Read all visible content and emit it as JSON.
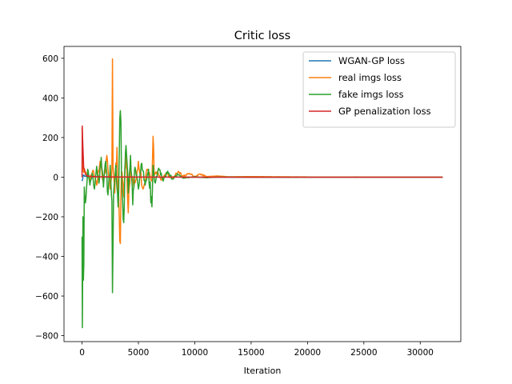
{
  "chart_data": {
    "type": "line",
    "title": "Critic loss",
    "xlabel": "Iteration",
    "ylabel": "",
    "xlim": [
      -1600,
      33600
    ],
    "ylim": [
      -830,
      660
    ],
    "x_ticks": [
      0,
      5000,
      10000,
      15000,
      20000,
      25000,
      30000
    ],
    "y_ticks": [
      -800,
      -600,
      -400,
      -200,
      0,
      200,
      400,
      600
    ],
    "grid": false,
    "legend_position": "top-right",
    "x_max": 32000,
    "series": [
      {
        "name": "WGAN-GP loss",
        "color": "#1f77b4",
        "points": [
          [
            0,
            -20
          ],
          [
            100,
            10
          ],
          [
            300,
            5
          ],
          [
            600,
            -3
          ],
          [
            1000,
            2
          ],
          [
            2000,
            0
          ],
          [
            5000,
            1
          ],
          [
            10000,
            0
          ],
          [
            20000,
            0
          ],
          [
            32000,
            0
          ]
        ]
      },
      {
        "name": "real imgs loss",
        "color": "#ff7f0e",
        "points": [
          [
            0,
            250
          ],
          [
            50,
            100
          ],
          [
            100,
            30
          ],
          [
            200,
            45
          ],
          [
            400,
            20
          ],
          [
            700,
            -15
          ],
          [
            1000,
            35
          ],
          [
            1300,
            -40
          ],
          [
            1600,
            80
          ],
          [
            1900,
            -30
          ],
          [
            2200,
            110
          ],
          [
            2500,
            -60
          ],
          [
            2650,
            40
          ],
          [
            2700,
            597
          ],
          [
            2750,
            50
          ],
          [
            2900,
            -80
          ],
          [
            3100,
            150
          ],
          [
            3300,
            -200
          ],
          [
            3400,
            -335
          ],
          [
            3500,
            30
          ],
          [
            3700,
            -100
          ],
          [
            3900,
            130
          ],
          [
            4100,
            -180
          ],
          [
            4300,
            60
          ],
          [
            4600,
            -50
          ],
          [
            5000,
            80
          ],
          [
            5400,
            -60
          ],
          [
            5800,
            40
          ],
          [
            6200,
            -20
          ],
          [
            6300,
            206
          ],
          [
            6400,
            10
          ],
          [
            6700,
            30
          ],
          [
            7000,
            -15
          ],
          [
            7500,
            20
          ],
          [
            8000,
            -10
          ],
          [
            8500,
            25
          ],
          [
            9000,
            5
          ],
          [
            9500,
            18
          ],
          [
            10000,
            2
          ],
          [
            10500,
            15
          ],
          [
            11000,
            3
          ],
          [
            12000,
            6
          ],
          [
            13000,
            2
          ],
          [
            15000,
            3
          ],
          [
            20000,
            1
          ],
          [
            25000,
            1
          ],
          [
            32000,
            0
          ]
        ]
      },
      {
        "name": "fake imgs loss",
        "color": "#2ca02c",
        "points": [
          [
            0,
            -300
          ],
          [
            30,
            -760
          ],
          [
            80,
            -200
          ],
          [
            120,
            -520
          ],
          [
            200,
            -50
          ],
          [
            300,
            -130
          ],
          [
            500,
            40
          ],
          [
            700,
            -40
          ],
          [
            900,
            20
          ],
          [
            1100,
            -60
          ],
          [
            1300,
            55
          ],
          [
            1500,
            -30
          ],
          [
            1700,
            100
          ],
          [
            1900,
            -50
          ],
          [
            2100,
            80
          ],
          [
            2300,
            -90
          ],
          [
            2500,
            60
          ],
          [
            2650,
            -120
          ],
          [
            2700,
            -583
          ],
          [
            2800,
            -80
          ],
          [
            3000,
            60
          ],
          [
            3200,
            -150
          ],
          [
            3400,
            336
          ],
          [
            3500,
            20
          ],
          [
            3700,
            -230
          ],
          [
            3900,
            160
          ],
          [
            4100,
            -80
          ],
          [
            4300,
            110
          ],
          [
            4500,
            -140
          ],
          [
            4700,
            50
          ],
          [
            5000,
            -60
          ],
          [
            5300,
            70
          ],
          [
            5600,
            -40
          ],
          [
            5900,
            40
          ],
          [
            6200,
            -150
          ],
          [
            6300,
            60
          ],
          [
            6500,
            -30
          ],
          [
            6800,
            45
          ],
          [
            7200,
            -20
          ],
          [
            7600,
            30
          ],
          [
            8000,
            -10
          ],
          [
            8500,
            15
          ],
          [
            9000,
            -5
          ],
          [
            10000,
            2
          ],
          [
            11000,
            -3
          ],
          [
            12000,
            1
          ],
          [
            15000,
            0
          ],
          [
            20000,
            0
          ],
          [
            32000,
            0
          ]
        ]
      },
      {
        "name": "GP penalization loss",
        "color": "#d62728",
        "points": [
          [
            0,
            0
          ],
          [
            20,
            258
          ],
          [
            60,
            180
          ],
          [
            100,
            120
          ],
          [
            200,
            40
          ],
          [
            300,
            15
          ],
          [
            500,
            6
          ],
          [
            800,
            3
          ],
          [
            1500,
            2
          ],
          [
            3000,
            1
          ],
          [
            5000,
            0.5
          ],
          [
            10000,
            0
          ],
          [
            20000,
            0
          ],
          [
            32000,
            0
          ]
        ]
      }
    ]
  }
}
